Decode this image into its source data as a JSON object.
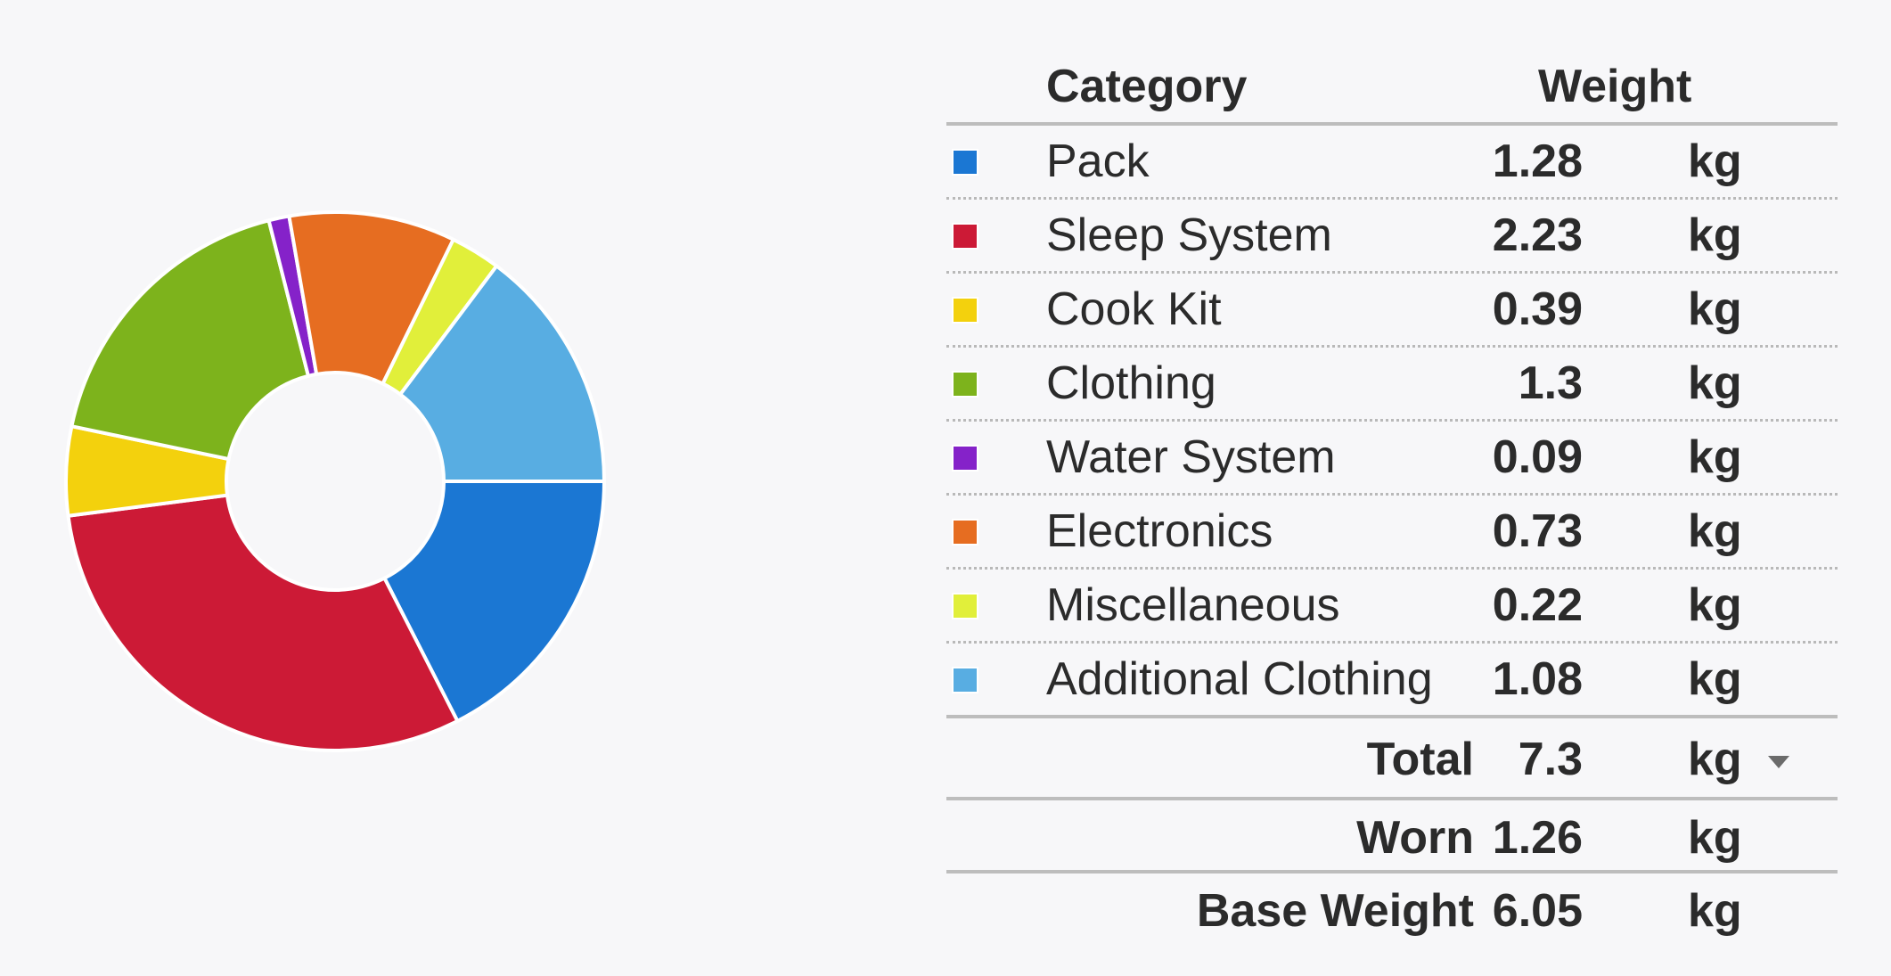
{
  "chart_data": {
    "type": "pie",
    "categories": [
      "Pack",
      "Sleep System",
      "Cook Kit",
      "Clothing",
      "Water System",
      "Electronics",
      "Miscellaneous",
      "Additional Clothing"
    ],
    "values": [
      1.28,
      2.23,
      0.39,
      1.3,
      0.09,
      0.73,
      0.22,
      1.08
    ],
    "colors": [
      "#1b77d3",
      "#cc1a36",
      "#f3d10d",
      "#7db31c",
      "#8522c9",
      "#e66d21",
      "#e1ef3a",
      "#58ade2"
    ],
    "unit": "kg",
    "donut": true
  },
  "table": {
    "header": {
      "category": "Category",
      "weight": "Weight"
    },
    "rows": [
      {
        "name": "Pack",
        "weight": "1.28",
        "unit": "kg",
        "color": "#1b77d3"
      },
      {
        "name": "Sleep System",
        "weight": "2.23",
        "unit": "kg",
        "color": "#cc1a36"
      },
      {
        "name": "Cook Kit",
        "weight": "0.39",
        "unit": "kg",
        "color": "#f3d10d"
      },
      {
        "name": "Clothing",
        "weight": "1.3",
        "unit": "kg",
        "color": "#7db31c"
      },
      {
        "name": "Water System",
        "weight": "0.09",
        "unit": "kg",
        "color": "#8522c9"
      },
      {
        "name": "Electronics",
        "weight": "0.73",
        "unit": "kg",
        "color": "#e66d21"
      },
      {
        "name": "Miscellaneous",
        "weight": "0.22",
        "unit": "kg",
        "color": "#e1ef3a"
      },
      {
        "name": "Additional Clothing",
        "weight": "1.08",
        "unit": "kg",
        "color": "#58ade2"
      }
    ],
    "total": {
      "label": "Total",
      "value": "7.3",
      "unit": "kg",
      "dropdown_icon": "caret-down-icon"
    },
    "worn": {
      "label": "Worn",
      "value": "1.26",
      "unit": "kg"
    },
    "base": {
      "label": "Base Weight",
      "value": "6.05",
      "unit": "kg"
    }
  }
}
